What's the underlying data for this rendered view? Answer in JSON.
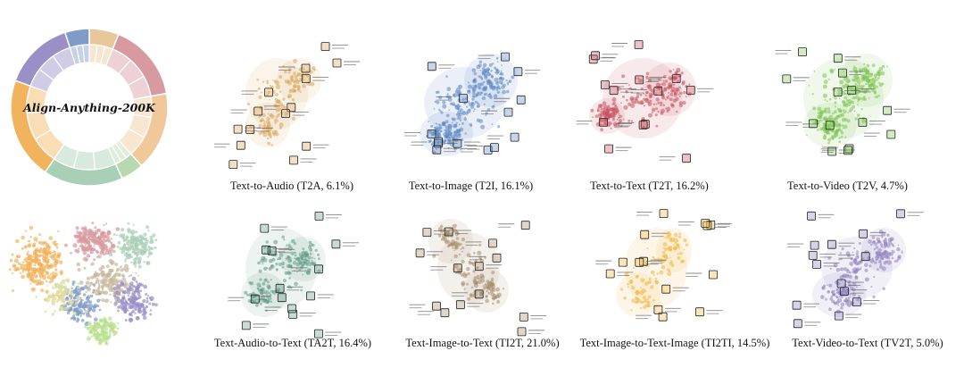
{
  "title": "Align-Anything-200K",
  "colors": {
    "T2A": "#d9a55a",
    "T2I": "#5b86c4",
    "T2T": "#c9505e",
    "T2V": "#7cc54f",
    "TA2T": "#5f9a86",
    "TI2T": "#a58c6a",
    "TI2TI": "#f0b843",
    "TV2T": "#8f80c0"
  },
  "donut": [
    {
      "key": "T2A",
      "pct": 6.1,
      "color": "#e8c79a"
    },
    {
      "key": "T2I",
      "pct": 16.1,
      "color": "#d79aa0"
    },
    {
      "key": "T2T",
      "pct": 16.2,
      "color": "#f0c89a"
    },
    {
      "key": "T2V",
      "pct": 4.7,
      "color": "#b8d8b0"
    },
    {
      "key": "TA2T",
      "pct": 16.4,
      "color": "#a9cfb6"
    },
    {
      "key": "TI2T",
      "pct": 21.0,
      "color": "#f1b45c"
    },
    {
      "key": "TI2TI",
      "pct": 14.5,
      "color": "#9a8fc7"
    },
    {
      "key": "TV2T",
      "pct": 5.0,
      "color": "#7f9bc8"
    }
  ],
  "panels": [
    {
      "id": "t2a",
      "caption": "Text-to-Audio (T2A, 6.1%)",
      "color": "#d9a55a"
    },
    {
      "id": "t2i",
      "caption": "Text-to-Image (T2I, 16.1%)",
      "color": "#5b86c4"
    },
    {
      "id": "t2t",
      "caption": "Text-to-Text (T2T, 16.2%)",
      "color": "#c9505e"
    },
    {
      "id": "t2v",
      "caption": "Text-to-Video (T2V, 4.7%)",
      "color": "#7cc54f"
    },
    {
      "id": "ta2t",
      "caption": "Text-Audio-to-Text (TA2T, 16.4%)",
      "color": "#5f9a86"
    },
    {
      "id": "ti2t",
      "caption": "Text-Image-to-Text (TI2T, 21.0%)",
      "color": "#a58c6a"
    },
    {
      "id": "ti2ti",
      "caption": "Text-Image-to-Text-Image (TI2TI, 14.5%)",
      "color": "#f0b843"
    },
    {
      "id": "tv2t",
      "caption": "Text-Video-to-Text (TV2T, 5.0%)",
      "color": "#8f80c0"
    }
  ]
}
